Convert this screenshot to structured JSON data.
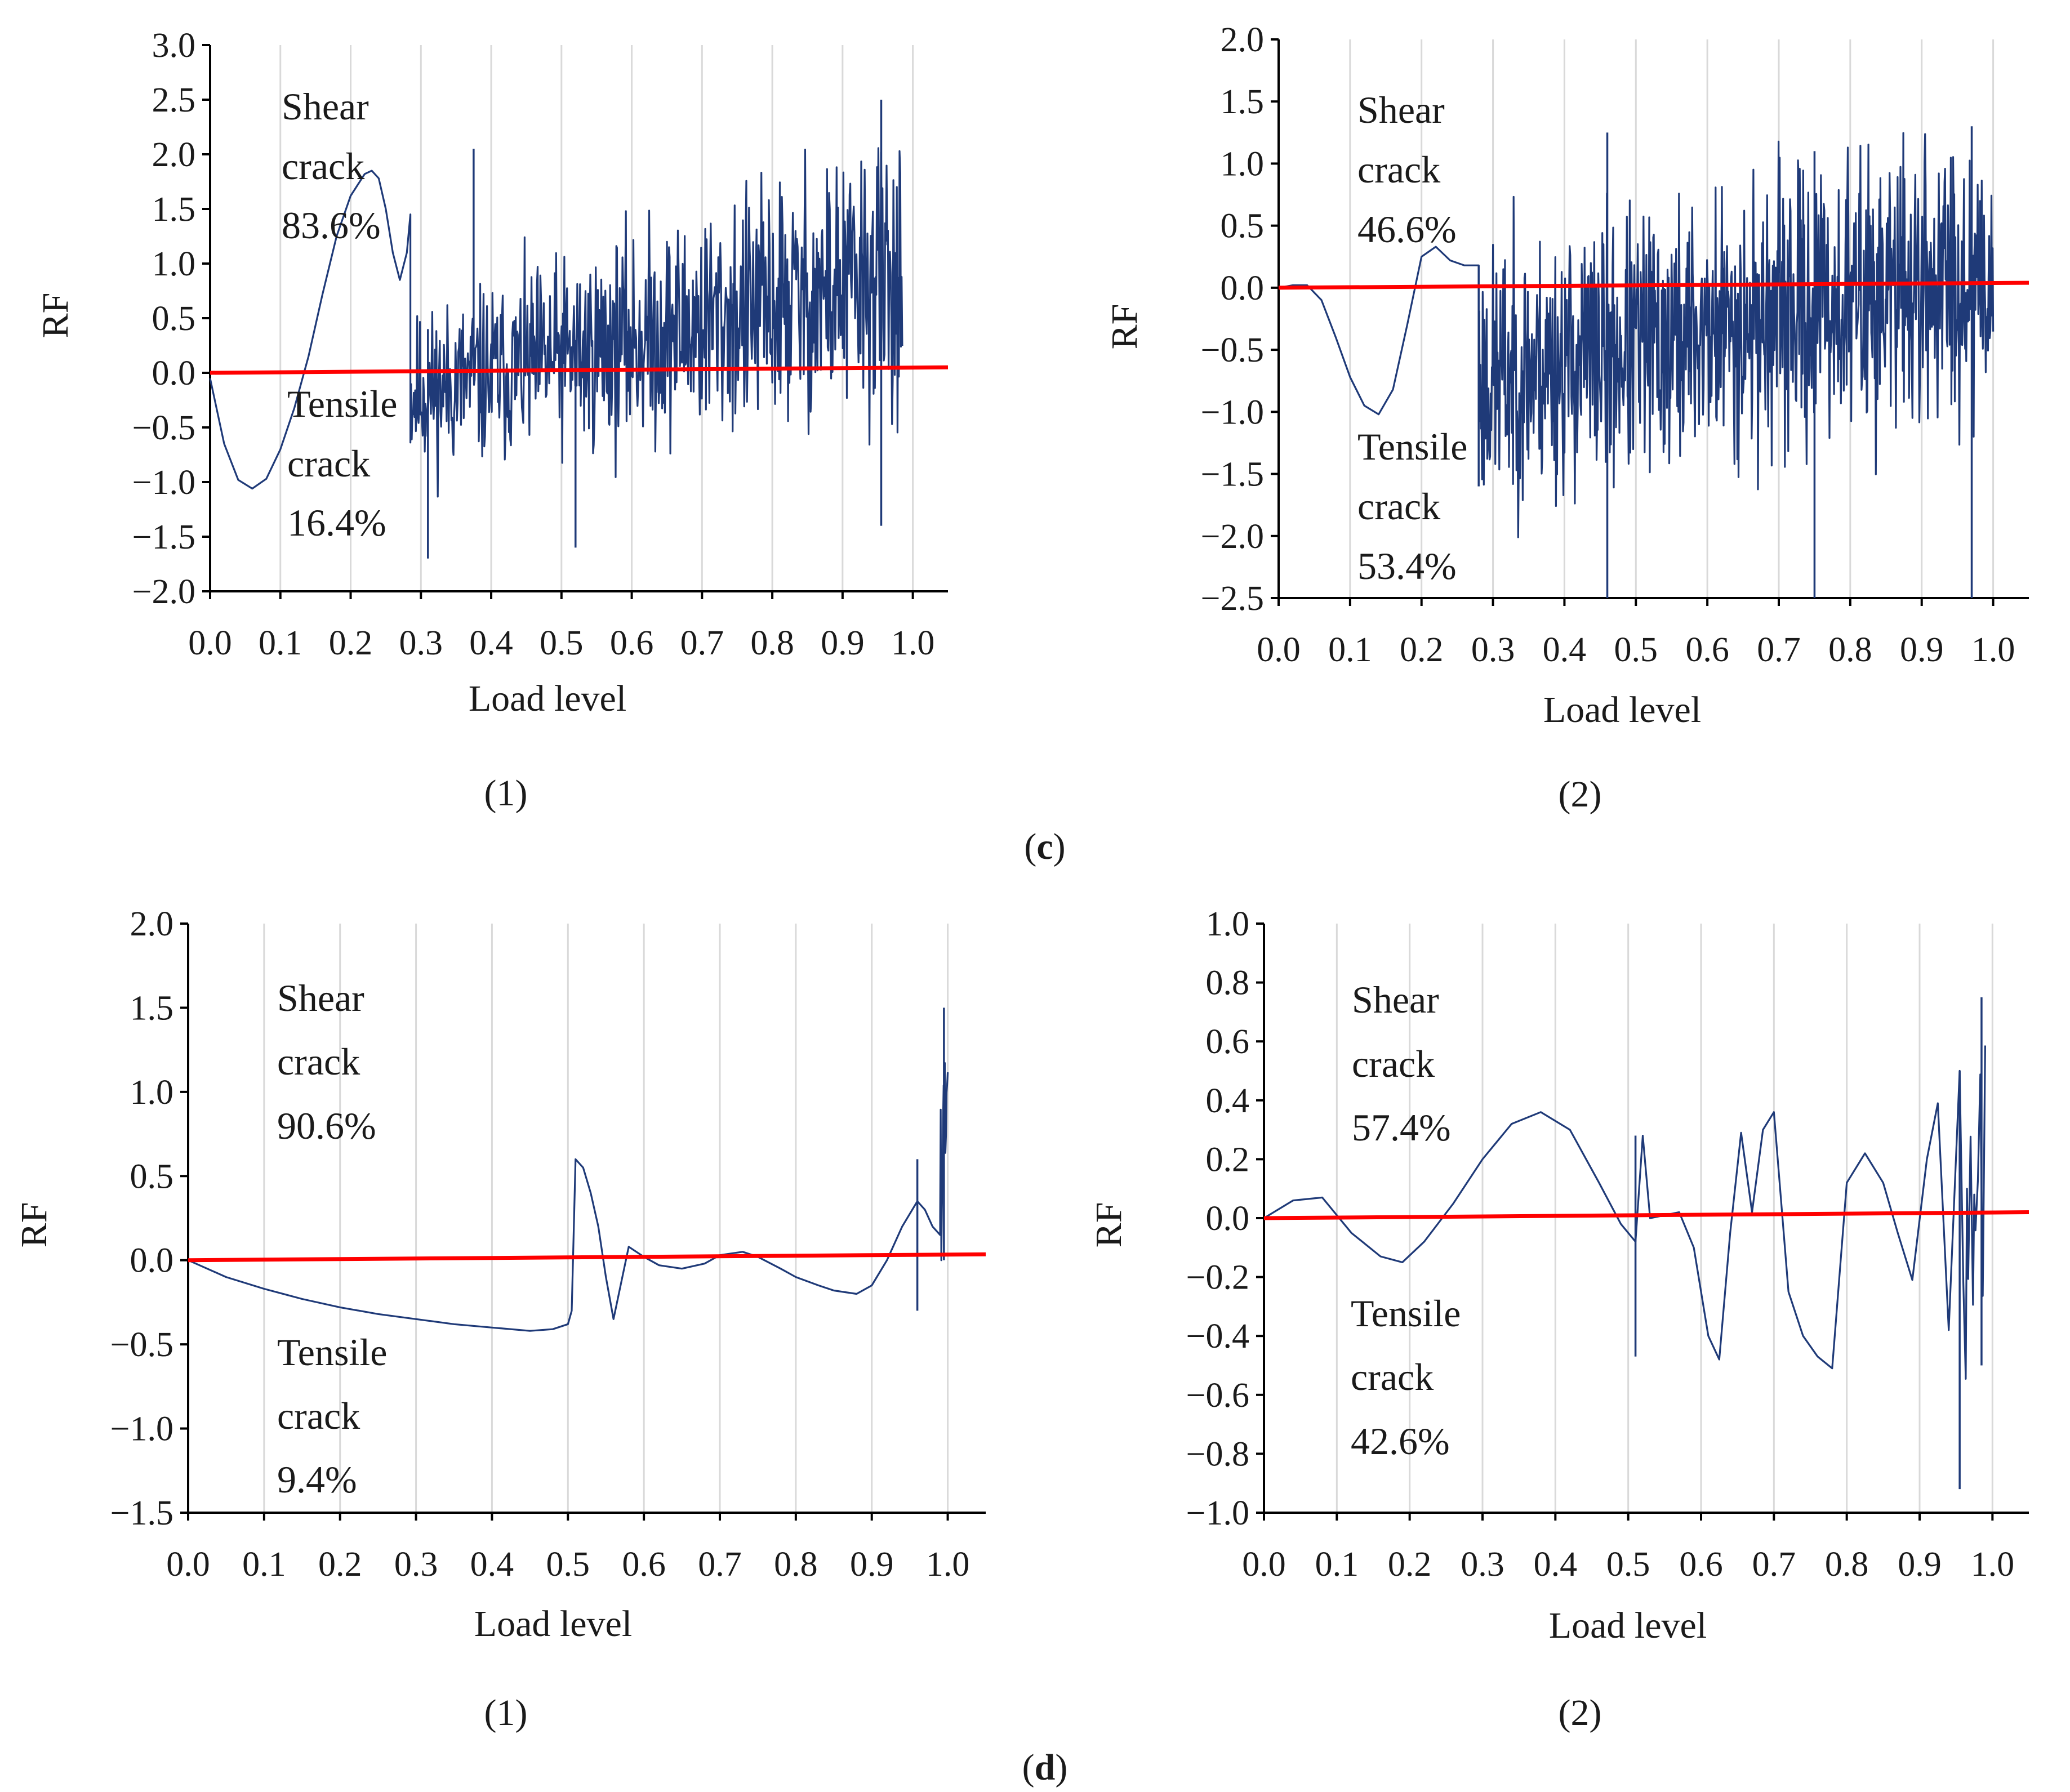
{
  "figure": {
    "group_labels": [
      {
        "open": "(",
        "letter": "c",
        "close": ")"
      },
      {
        "open": "(",
        "letter": "d",
        "close": ")"
      }
    ]
  },
  "colors": {
    "series": "#1f3a78",
    "reference": "#ff0000",
    "grid": "#d9d9d9",
    "axis": "#000000"
  },
  "chart_data": [
    {
      "id": "c1",
      "type": "line",
      "panel_label": "(1)",
      "xlabel": "Load level",
      "ylabel": "RF",
      "xlim": [
        0,
        1.05
      ],
      "ylim": [
        -2.0,
        3.0
      ],
      "xticks": [
        0.0,
        0.1,
        0.2,
        0.3,
        0.4,
        0.5,
        0.6,
        0.7,
        0.8,
        0.9,
        1.0
      ],
      "xtick_labels": [
        "0.0",
        "0.1",
        "0.2",
        "0.3",
        "0.4",
        "0.5",
        "0.6",
        "0.7",
        "0.8",
        "0.9",
        "1.0"
      ],
      "yticks": [
        -2.0,
        -1.5,
        -1.0,
        -0.5,
        0.0,
        0.5,
        1.0,
        1.5,
        2.0,
        2.5,
        3.0
      ],
      "ytick_labels": [
        "−2.0",
        "−1.5",
        "−1.0",
        "−0.5",
        "0.0",
        "0.5",
        "1.0",
        "1.5",
        "2.0",
        "2.5",
        "3.0"
      ],
      "grid": "vertical",
      "annotations": {
        "shear": [
          "Shear",
          "crack",
          "83.6%"
        ],
        "tensile": [
          "Tensile",
          "crack",
          "16.4%"
        ]
      },
      "shear_ratio": 0.836,
      "tensile_ratio": 0.164,
      "reference_line": {
        "x": [
          0,
          1.05
        ],
        "y": [
          0.0,
          0.05
        ]
      },
      "smooth": {
        "x": [
          0,
          0.02,
          0.04,
          0.06,
          0.08,
          0.1,
          0.12,
          0.14,
          0.16,
          0.18,
          0.2,
          0.22,
          0.23,
          0.24,
          0.25,
          0.26,
          0.27,
          0.28,
          0.285
        ],
        "y": [
          -0.05,
          -0.65,
          -0.98,
          -1.06,
          -0.97,
          -0.7,
          -0.32,
          0.15,
          0.72,
          1.25,
          1.62,
          1.82,
          1.85,
          1.78,
          1.5,
          1.1,
          0.85,
          1.1,
          1.45
        ]
      },
      "noisy": {
        "x_start": 0.285,
        "x_end": 0.985,
        "count": 720,
        "mean_start": -0.2,
        "mean_end": 0.9,
        "amp_start": 0.65,
        "amp_end": 1.2,
        "ymin": -1.7,
        "ymax": 2.5,
        "seed": 11
      },
      "spikes": [
        {
          "x": 0.375,
          "y0": 0.0,
          "y1": 2.05
        },
        {
          "x": 0.31,
          "y0": -1.7,
          "y1": 0.4
        },
        {
          "x": 0.955,
          "y0": -1.4,
          "y1": 2.5
        },
        {
          "x": 0.52,
          "y0": -1.6,
          "y1": 0.3
        }
      ]
    },
    {
      "id": "c2",
      "type": "line",
      "panel_label": "(2)",
      "xlabel": "Load level",
      "ylabel": "RF",
      "xlim": [
        0,
        1.05
      ],
      "ylim": [
        -2.5,
        2.0
      ],
      "xticks": [
        0.0,
        0.1,
        0.2,
        0.3,
        0.4,
        0.5,
        0.6,
        0.7,
        0.8,
        0.9,
        1.0
      ],
      "xtick_labels": [
        "0.0",
        "0.1",
        "0.2",
        "0.3",
        "0.4",
        "0.5",
        "0.6",
        "0.7",
        "0.8",
        "0.9",
        "1.0"
      ],
      "yticks": [
        -2.5,
        -2.0,
        -1.5,
        -1.0,
        -0.5,
        0.0,
        0.5,
        1.0,
        1.5,
        2.0
      ],
      "ytick_labels": [
        "−2.5",
        "−2.0",
        "−1.5",
        "−1.0",
        "−0.5",
        "0.0",
        "0.5",
        "1.0",
        "1.5",
        "2.0"
      ],
      "grid": "vertical",
      "annotations": {
        "shear": [
          "Shear",
          "crack",
          "46.6%"
        ],
        "tensile": [
          "Tensile",
          "crack",
          "53.4%"
        ]
      },
      "shear_ratio": 0.466,
      "tensile_ratio": 0.534,
      "reference_line": {
        "x": [
          0,
          1.05
        ],
        "y": [
          0.0,
          0.04
        ]
      },
      "smooth": {
        "x": [
          0,
          0.02,
          0.04,
          0.06,
          0.08,
          0.1,
          0.12,
          0.14,
          0.16,
          0.18,
          0.2,
          0.22,
          0.24,
          0.26,
          0.28
        ],
        "y": [
          0.0,
          0.02,
          0.02,
          -0.1,
          -0.4,
          -0.72,
          -0.95,
          -1.02,
          -0.82,
          -0.3,
          0.25,
          0.33,
          0.22,
          0.18,
          0.18
        ]
      },
      "noisy": {
        "x_start": 0.28,
        "x_end": 1.0,
        "count": 900,
        "mean_start": -0.75,
        "mean_end": 0.15,
        "amp_start": 0.95,
        "amp_end": 1.05,
        "ymin": -2.5,
        "ymax": 1.4,
        "seed": 23
      },
      "spikes": [
        {
          "x": 0.28,
          "y0": -1.6,
          "y1": 0.18
        },
        {
          "x": 0.46,
          "y0": -2.5,
          "y1": 1.25
        },
        {
          "x": 0.75,
          "y0": -2.5,
          "y1": 1.1
        },
        {
          "x": 0.97,
          "y0": -2.5,
          "y1": 1.3
        }
      ]
    },
    {
      "id": "d1",
      "type": "line",
      "panel_label": "(1)",
      "xlabel": "Load level",
      "ylabel": "RF",
      "xlim": [
        0,
        1.05
      ],
      "ylim": [
        -1.5,
        2.0
      ],
      "xticks": [
        0.0,
        0.1,
        0.2,
        0.3,
        0.4,
        0.5,
        0.6,
        0.7,
        0.8,
        0.9,
        1.0
      ],
      "xtick_labels": [
        "0.0",
        "0.1",
        "0.2",
        "0.3",
        "0.4",
        "0.5",
        "0.6",
        "0.7",
        "0.8",
        "0.9",
        "1.0"
      ],
      "yticks": [
        -1.5,
        -1.0,
        -0.5,
        0.0,
        0.5,
        1.0,
        1.5,
        2.0
      ],
      "ytick_labels": [
        "−1.5",
        "−1.0",
        "−0.5",
        "0.0",
        "0.5",
        "1.0",
        "1.5",
        "2.0"
      ],
      "grid": "vertical",
      "annotations": {
        "shear": [
          "Shear",
          "crack",
          "90.6%"
        ],
        "tensile": [
          "Tensile",
          "crack",
          "9.4%"
        ]
      },
      "shear_ratio": 0.906,
      "tensile_ratio": 0.094,
      "reference_line": {
        "x": [
          0,
          1.05
        ],
        "y": [
          0.0,
          0.035
        ]
      },
      "smooth": {
        "x": [
          0,
          0.05,
          0.1,
          0.15,
          0.2,
          0.25,
          0.3,
          0.35,
          0.4,
          0.45,
          0.48,
          0.5,
          0.505,
          0.51,
          0.52,
          0.53,
          0.54,
          0.55,
          0.56,
          0.58,
          0.6,
          0.62,
          0.65,
          0.68,
          0.7,
          0.73,
          0.75,
          0.78,
          0.8,
          0.83,
          0.85,
          0.88,
          0.9,
          0.92,
          0.94,
          0.96,
          0.97,
          0.98,
          0.99
        ],
        "y": [
          0.0,
          -0.1,
          -0.17,
          -0.23,
          -0.28,
          -0.32,
          -0.35,
          -0.38,
          -0.4,
          -0.42,
          -0.41,
          -0.38,
          -0.3,
          0.6,
          0.55,
          0.4,
          0.2,
          -0.1,
          -0.35,
          0.08,
          0.02,
          -0.03,
          -0.05,
          -0.02,
          0.03,
          0.05,
          0.02,
          -0.05,
          -0.1,
          -0.15,
          -0.18,
          -0.2,
          -0.15,
          0.0,
          0.2,
          0.35,
          0.3,
          0.2,
          0.15
        ]
      },
      "noisy": {
        "x_start": 0.99,
        "x_end": 1.0,
        "count": 14,
        "mean_start": 0.5,
        "mean_end": 1.0,
        "amp_start": 0.8,
        "amp_end": 0.5,
        "ymin": 0.0,
        "ymax": 1.5,
        "seed": 5
      },
      "spikes": [
        {
          "x": 0.96,
          "y0": -0.3,
          "y1": 0.6
        },
        {
          "x": 0.995,
          "y0": 0.0,
          "y1": 1.5
        }
      ]
    },
    {
      "id": "d2",
      "type": "line",
      "panel_label": "(2)",
      "xlabel": "Load level",
      "ylabel": "RF",
      "xlim": [
        0,
        1.05
      ],
      "ylim": [
        -1.0,
        1.0
      ],
      "xticks": [
        0.0,
        0.1,
        0.2,
        0.3,
        0.4,
        0.5,
        0.6,
        0.7,
        0.8,
        0.9,
        1.0
      ],
      "xtick_labels": [
        "0.0",
        "0.1",
        "0.2",
        "0.3",
        "0.4",
        "0.5",
        "0.6",
        "0.7",
        "0.8",
        "0.9",
        "1.0"
      ],
      "yticks": [
        -1.0,
        -0.8,
        -0.6,
        -0.4,
        -0.2,
        0.0,
        0.2,
        0.4,
        0.6,
        0.8,
        1.0
      ],
      "ytick_labels": [
        "−1.0",
        "−0.8",
        "−0.6",
        "−0.4",
        "−0.2",
        "0.0",
        "0.2",
        "0.4",
        "0.6",
        "0.8",
        "1.0"
      ],
      "grid": "vertical",
      "annotations": {
        "shear": [
          "Shear",
          "crack",
          "57.4%"
        ],
        "tensile": [
          "Tensile",
          "crack",
          "42.6%"
        ]
      },
      "shear_ratio": 0.574,
      "tensile_ratio": 0.426,
      "reference_line": {
        "x": [
          0,
          1.05
        ],
        "y": [
          0.0,
          0.02
        ]
      },
      "smooth": {
        "x": [
          0,
          0.04,
          0.08,
          0.12,
          0.16,
          0.19,
          0.22,
          0.26,
          0.3,
          0.34,
          0.38,
          0.42,
          0.46,
          0.49,
          0.51,
          0.52,
          0.53,
          0.55,
          0.57,
          0.59,
          0.61,
          0.625,
          0.64,
          0.655,
          0.67,
          0.685,
          0.7,
          0.72,
          0.74,
          0.76,
          0.78,
          0.8,
          0.825,
          0.85,
          0.87,
          0.89,
          0.91,
          0.925,
          0.94,
          0.955,
          0.965,
          0.975,
          0.985
        ],
        "y": [
          0.0,
          0.06,
          0.07,
          -0.05,
          -0.13,
          -0.15,
          -0.08,
          0.05,
          0.2,
          0.32,
          0.36,
          0.3,
          0.12,
          -0.02,
          -0.08,
          0.28,
          0.0,
          0.01,
          0.02,
          -0.1,
          -0.4,
          -0.48,
          -0.05,
          0.29,
          0.02,
          0.3,
          0.36,
          -0.25,
          -0.4,
          -0.47,
          -0.51,
          0.12,
          0.22,
          0.12,
          -0.05,
          -0.21,
          0.2,
          0.39,
          -0.38,
          0.5,
          0.1,
          0.08,
          0.1
        ]
      },
      "noisy": {
        "x_start": 0.96,
        "x_end": 0.99,
        "count": 10,
        "mean_start": -0.1,
        "mean_end": 0.3,
        "amp_start": 0.6,
        "amp_end": 0.6,
        "ymin": -0.92,
        "ymax": 0.75,
        "seed": 9
      },
      "spikes": [
        {
          "x": 0.51,
          "y0": -0.47,
          "y1": 0.28
        },
        {
          "x": 0.955,
          "y0": -0.92,
          "y1": 0.5
        },
        {
          "x": 0.985,
          "y0": -0.5,
          "y1": 0.75
        }
      ]
    }
  ]
}
